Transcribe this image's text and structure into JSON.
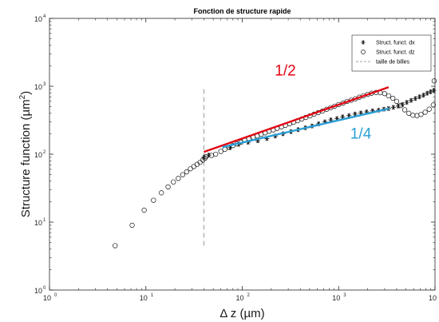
{
  "chart_data": {
    "type": "scatter",
    "title": "Fonction de structure rapide",
    "xlabel": "Δ z (µm)",
    "ylabel_main": "Structure function (µm",
    "ylabel_sup": "2",
    "ylabel_close": ")",
    "x_scale": "log",
    "y_scale": "log",
    "xlim": [
      1,
      10000
    ],
    "ylim": [
      1,
      10000
    ],
    "grid": false,
    "legend_position": "top-right",
    "x_ticks": [
      {
        "value": 1,
        "base": "10",
        "exp": "0"
      },
      {
        "value": 10,
        "base": "10",
        "exp": "1"
      },
      {
        "value": 100,
        "base": "10",
        "exp": "2"
      },
      {
        "value": 1000,
        "base": "10",
        "exp": "3"
      },
      {
        "value": 10000,
        "base": "10",
        "exp": "4"
      }
    ],
    "y_ticks": [
      {
        "value": 1,
        "base": "10",
        "exp": "0"
      },
      {
        "value": 10,
        "base": "10",
        "exp": "1"
      },
      {
        "value": 100,
        "base": "10",
        "exp": "2"
      },
      {
        "value": 1000,
        "base": "10",
        "exp": "3"
      },
      {
        "value": 10000,
        "base": "10",
        "exp": "4"
      }
    ],
    "series": [
      {
        "name": "Struct. funct. dx",
        "marker": "asterisk",
        "color": "#1a1a1a",
        "points": [
          [
            40,
            90
          ],
          [
            45,
            97
          ],
          [
            75,
            125
          ],
          [
            92,
            140
          ],
          [
            115,
            150
          ],
          [
            145,
            158
          ],
          [
            180,
            170
          ],
          [
            220,
            185
          ],
          [
            265,
            200
          ],
          [
            320,
            215
          ],
          [
            380,
            230
          ],
          [
            450,
            245
          ],
          [
            530,
            260
          ],
          [
            620,
            280
          ],
          [
            720,
            300
          ],
          [
            830,
            320
          ],
          [
            960,
            335
          ],
          [
            1100,
            355
          ],
          [
            1280,
            370
          ],
          [
            1480,
            390
          ],
          [
            1700,
            405
          ],
          [
            1950,
            420
          ],
          [
            2250,
            435
          ],
          [
            2600,
            445
          ],
          [
            2950,
            460
          ],
          [
            3300,
            470
          ],
          [
            3700,
            490
          ],
          [
            4150,
            510
          ],
          [
            4600,
            540
          ],
          [
            5100,
            580
          ],
          [
            5650,
            620
          ],
          [
            6250,
            660
          ],
          [
            6900,
            700
          ],
          [
            7600,
            740
          ],
          [
            8300,
            790
          ],
          [
            9000,
            830
          ],
          [
            9700,
            870
          ]
        ]
      },
      {
        "name": "Struct. funct. dz",
        "marker": "circle",
        "color": "#1a1a1a",
        "points": [
          [
            4.8,
            4.5
          ],
          [
            7.2,
            9
          ],
          [
            9.6,
            15
          ],
          [
            12,
            21
          ],
          [
            14.5,
            27
          ],
          [
            17,
            33
          ],
          [
            19.3,
            39
          ],
          [
            21.7,
            44
          ],
          [
            24.1,
            50
          ],
          [
            26.5,
            55
          ],
          [
            29,
            61
          ],
          [
            31.4,
            66
          ],
          [
            34,
            71
          ],
          [
            36.5,
            76
          ],
          [
            39,
            82
          ],
          [
            41,
            87
          ],
          [
            42,
            92
          ],
          [
            48,
            96
          ],
          [
            53,
            100
          ],
          [
            60,
            110
          ],
          [
            66,
            118
          ],
          [
            73,
            126
          ],
          [
            80,
            134
          ],
          [
            88,
            142
          ],
          [
            97,
            150
          ],
          [
            106,
            160
          ],
          [
            117,
            168
          ],
          [
            130,
            178
          ],
          [
            143,
            186
          ],
          [
            157,
            196
          ],
          [
            173,
            206
          ],
          [
            190,
            218
          ],
          [
            210,
            228
          ],
          [
            230,
            240
          ],
          [
            255,
            253
          ],
          [
            280,
            266
          ],
          [
            310,
            280
          ],
          [
            340,
            295
          ],
          [
            375,
            312
          ],
          [
            415,
            330
          ],
          [
            455,
            348
          ],
          [
            505,
            367
          ],
          [
            555,
            388
          ],
          [
            615,
            410
          ],
          [
            680,
            433
          ],
          [
            750,
            458
          ],
          [
            825,
            483
          ],
          [
            910,
            510
          ],
          [
            1000,
            538
          ],
          [
            1110,
            565
          ],
          [
            1220,
            598
          ],
          [
            1350,
            625
          ],
          [
            1490,
            655
          ],
          [
            1640,
            690
          ],
          [
            1810,
            725
          ],
          [
            2000,
            760
          ],
          [
            2200,
            790
          ],
          [
            2450,
            810
          ],
          [
            2700,
            805
          ],
          [
            3000,
            780
          ],
          [
            3300,
            725
          ],
          [
            3650,
            665
          ],
          [
            4000,
            600
          ],
          [
            4400,
            520
          ],
          [
            4850,
            450
          ],
          [
            5350,
            400
          ],
          [
            5900,
            375
          ],
          [
            6500,
            370
          ],
          [
            7150,
            385
          ],
          [
            7900,
            415
          ],
          [
            8700,
            460
          ],
          [
            9600,
            530
          ],
          [
            9800,
            1200
          ]
        ]
      }
    ],
    "reference_lines": [
      {
        "name": "taille de billes",
        "style": "dashed",
        "color": "#a6a6a6",
        "x": 40,
        "y_range": [
          4.5,
          1000
        ]
      }
    ],
    "fit_lines": [
      {
        "color": "#e30613",
        "x": [
          40,
          3300
        ],
        "y": [
          108,
          970
        ]
      },
      {
        "color": "#2a9fd6",
        "x": [
          62,
          3350
        ],
        "y": [
          127,
          469
        ]
      }
    ],
    "annotations": [
      {
        "text": "1/2",
        "x": 280,
        "y": 1450,
        "color": "#e30613"
      },
      {
        "text": "1/4",
        "x": 1700,
        "y": 170,
        "color": "#2a9fd6"
      }
    ]
  }
}
